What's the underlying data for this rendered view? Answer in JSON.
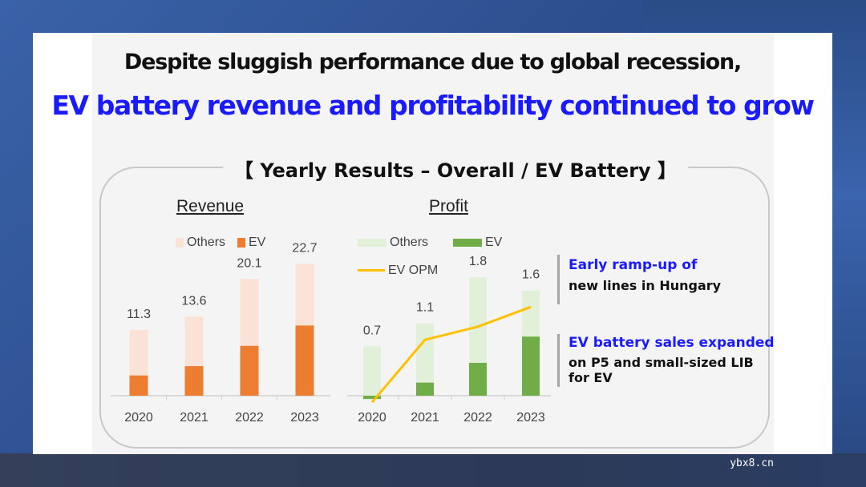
{
  "headline": {
    "line1": "Despite sluggish performance due to global recession,",
    "line2": "EV battery revenue and profitability continued to grow"
  },
  "section_title": "【 Yearly Results – Overall / EV Battery 】",
  "colors": {
    "others_revenue": "#fbe2d6",
    "ev_revenue": "#ed7d31",
    "others_profit": "#e2f0d9",
    "ev_profit": "#70ad47",
    "opm_line": "#ffc000",
    "accent_blue": "#1a1aff"
  },
  "chart_data": [
    {
      "type": "bar",
      "stacked": true,
      "title": "Revenue",
      "categories": [
        "2020",
        "2021",
        "2022",
        "2023"
      ],
      "series": [
        {
          "name": "Others",
          "values": [
            7.8,
            8.5,
            11.5,
            10.6
          ]
        },
        {
          "name": "EV",
          "values": [
            3.5,
            5.1,
            8.6,
            12.1
          ]
        }
      ],
      "totals": [
        11.3,
        13.6,
        20.1,
        22.7
      ],
      "total_labels": [
        "11.3",
        "13.6",
        "20.1",
        "22.7"
      ],
      "legend": [
        "Others",
        "EV"
      ],
      "ylim": [
        0,
        24
      ]
    },
    {
      "type": "bar",
      "stacked": true,
      "title": "Profit",
      "categories": [
        "2020",
        "2021",
        "2022",
        "2023"
      ],
      "series": [
        {
          "name": "Others",
          "values": [
            0.75,
            0.9,
            1.3,
            0.7
          ]
        },
        {
          "name": "EV",
          "values": [
            -0.05,
            0.2,
            0.5,
            0.9
          ]
        }
      ],
      "totals": [
        0.7,
        1.1,
        1.8,
        1.6
      ],
      "total_labels": [
        "0.7",
        "1.1",
        "1.8",
        "1.6"
      ],
      "line": {
        "name": "EV OPM",
        "values": [
          -0.1,
          0.85,
          1.05,
          1.35
        ]
      },
      "legend": [
        "Others",
        "EV",
        "EV OPM"
      ],
      "ylim": [
        -0.15,
        1.9
      ]
    }
  ],
  "notes": [
    {
      "head": "Early ramp-up of",
      "body": [
        "new lines in Hungary"
      ]
    },
    {
      "head": "EV battery sales expanded",
      "body": [
        "on P5 and small-sized LIB",
        "for EV"
      ]
    }
  ],
  "watermark": "ybx8.cn"
}
